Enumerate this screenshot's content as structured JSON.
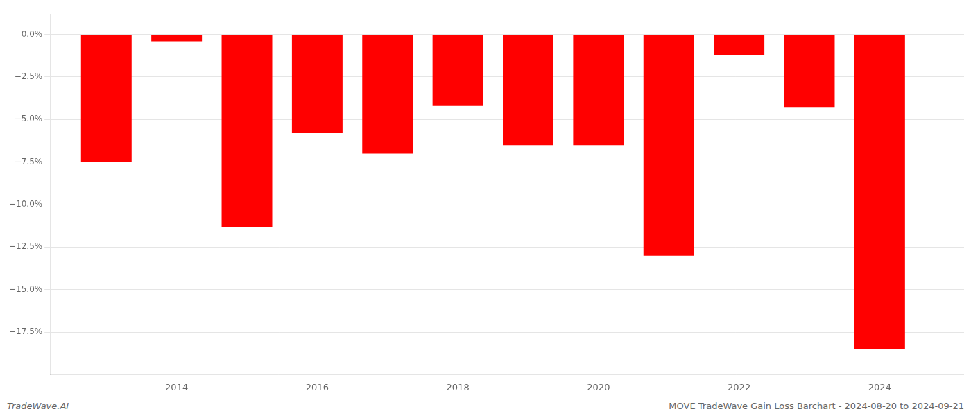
{
  "chart_data": {
    "type": "bar",
    "x": [
      2013,
      2014,
      2015,
      2016,
      2017,
      2018,
      2019,
      2020,
      2021,
      2022,
      2023,
      2024
    ],
    "values": [
      -7.5,
      -0.4,
      -11.3,
      -5.8,
      -7.0,
      -4.2,
      -6.5,
      -6.5,
      -13.0,
      -1.2,
      -4.3,
      -18.5
    ],
    "color": "#ff0000",
    "xlim": [
      2012.2,
      2025.2
    ],
    "xticks": [
      2014,
      2016,
      2018,
      2020,
      2022,
      2024
    ],
    "ylim": [
      -20.0,
      1.2
    ],
    "yticks": [
      {
        "value": 0.0,
        "label": "0.0%"
      },
      {
        "value": -2.5,
        "label": "−2.5%"
      },
      {
        "value": -5.0,
        "label": "−5.0%"
      },
      {
        "value": -7.5,
        "label": "−7.5%"
      },
      {
        "value": -10.0,
        "label": "−10.0%"
      },
      {
        "value": -12.5,
        "label": "−12.5%"
      },
      {
        "value": -15.0,
        "label": "−15.0%"
      },
      {
        "value": -17.5,
        "label": "−17.5%"
      }
    ],
    "grid": "y",
    "annotations": [
      "TradeWave.AI",
      "MOVE TradeWave Gain Loss Barchart - 2024-08-20 to 2024-09-21"
    ]
  }
}
